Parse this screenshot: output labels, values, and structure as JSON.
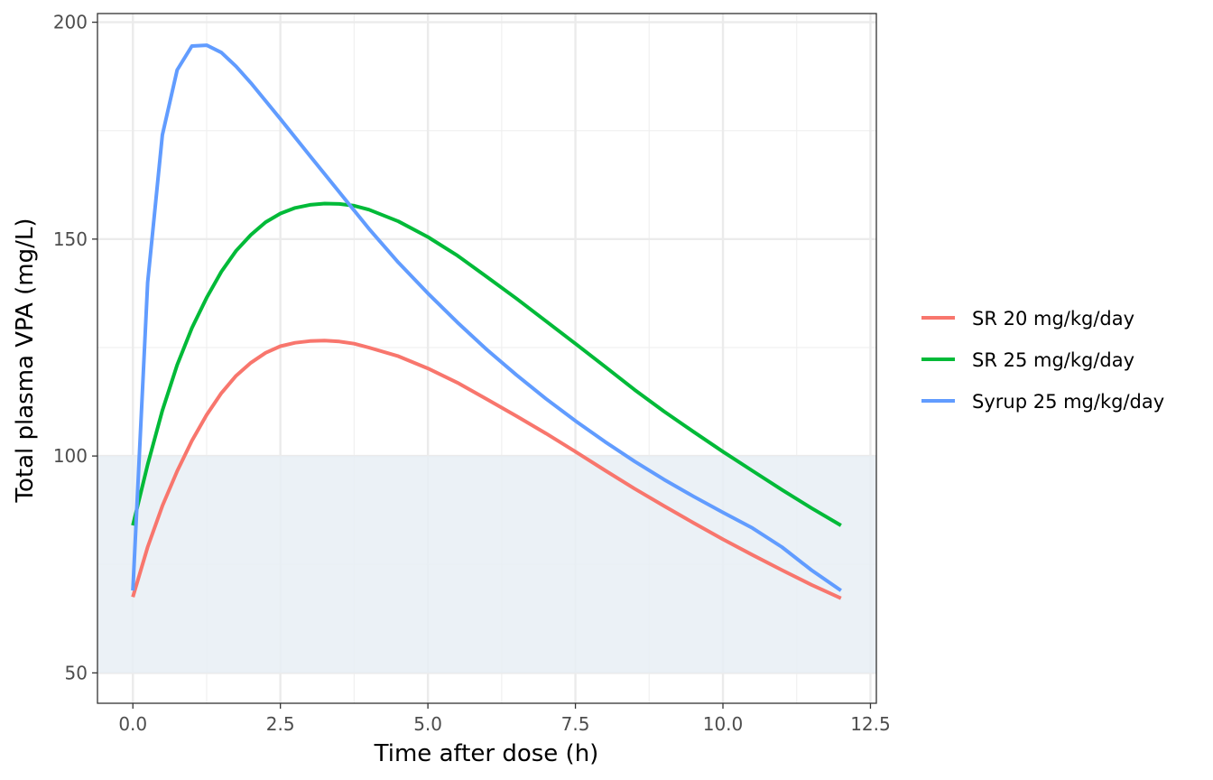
{
  "chart_data": {
    "type": "line",
    "title": "",
    "xlabel": "Time after dose (h)",
    "ylabel": "Total plasma VPA (mg/L)",
    "xlim": [
      -0.6,
      12.6
    ],
    "ylim": [
      43,
      202
    ],
    "x_ticks": [
      0.0,
      2.5,
      5.0,
      7.5,
      10.0,
      12.5
    ],
    "x_tick_labels": [
      "0.0",
      "2.5",
      "5.0",
      "7.5",
      "10.0",
      "12.5"
    ],
    "y_ticks": [
      50,
      100,
      150,
      200
    ],
    "y_tick_labels": [
      "50",
      "100",
      "150",
      "200"
    ],
    "grid": true,
    "legend_position": "right",
    "therapeutic_range": {
      "ymin": 50,
      "ymax": 100,
      "color": "#e8eef5"
    },
    "series": [
      {
        "name": "SR 20 mg/kg/day",
        "color": "#F8766D",
        "x": [
          0,
          0.25,
          0.5,
          0.75,
          1,
          1.25,
          1.5,
          1.75,
          2,
          2.25,
          2.5,
          2.75,
          3,
          3.25,
          3.5,
          3.75,
          4,
          4.5,
          5,
          5.5,
          6,
          6.5,
          7,
          7.5,
          8,
          8.5,
          9,
          9.5,
          10,
          10.5,
          11,
          11.5,
          12
        ],
        "y": [
          67.5,
          79,
          88.5,
          96.5,
          103.5,
          109.5,
          114.5,
          118.5,
          121.5,
          123.8,
          125.3,
          126.1,
          126.5,
          126.6,
          126.4,
          125.9,
          125.0,
          123.0,
          120.2,
          116.9,
          113.1,
          109.2,
          105.2,
          101.0,
          96.7,
          92.5,
          88.5,
          84.6,
          80.8,
          77.2,
          73.7,
          70.3,
          67.2
        ]
      },
      {
        "name": "SR 25 mg/kg/day",
        "color": "#00BA38",
        "x": [
          0,
          0.25,
          0.5,
          0.75,
          1,
          1.25,
          1.5,
          1.75,
          2,
          2.25,
          2.5,
          2.75,
          3,
          3.25,
          3.5,
          3.75,
          4,
          4.5,
          5,
          5.5,
          6,
          6.5,
          7,
          7.5,
          8,
          8.5,
          9,
          9.5,
          10,
          10.5,
          11,
          11.5,
          12
        ],
        "y": [
          84,
          98,
          110.5,
          121,
          129.5,
          136.5,
          142.5,
          147.3,
          151.0,
          153.9,
          155.9,
          157.2,
          157.9,
          158.2,
          158.1,
          157.7,
          156.8,
          154.1,
          150.5,
          146.2,
          141.3,
          136.3,
          131.1,
          125.9,
          120.6,
          115.3,
          110.3,
          105.6,
          101.0,
          96.6,
          92.2,
          88.0,
          84.0
        ]
      },
      {
        "name": "Syrup 25 mg/kg/day",
        "color": "#619CFF",
        "x": [
          0,
          0.25,
          0.5,
          0.75,
          1,
          1.25,
          1.5,
          1.75,
          2,
          2.5,
          3,
          3.5,
          4,
          4.5,
          5,
          5.5,
          6,
          6.5,
          7,
          7.5,
          8,
          8.5,
          9,
          9.5,
          10,
          10.5,
          11,
          11.5,
          12
        ],
        "y": [
          69,
          140,
          174,
          189,
          194.5,
          194.7,
          193,
          189.8,
          186,
          177.7,
          169.2,
          160.8,
          152.4,
          144.6,
          137.5,
          130.8,
          124.5,
          118.7,
          113.2,
          108.1,
          103.3,
          98.8,
          94.6,
          90.7,
          87.0,
          83.4,
          79.0,
          73.7,
          69.0
        ]
      }
    ]
  }
}
